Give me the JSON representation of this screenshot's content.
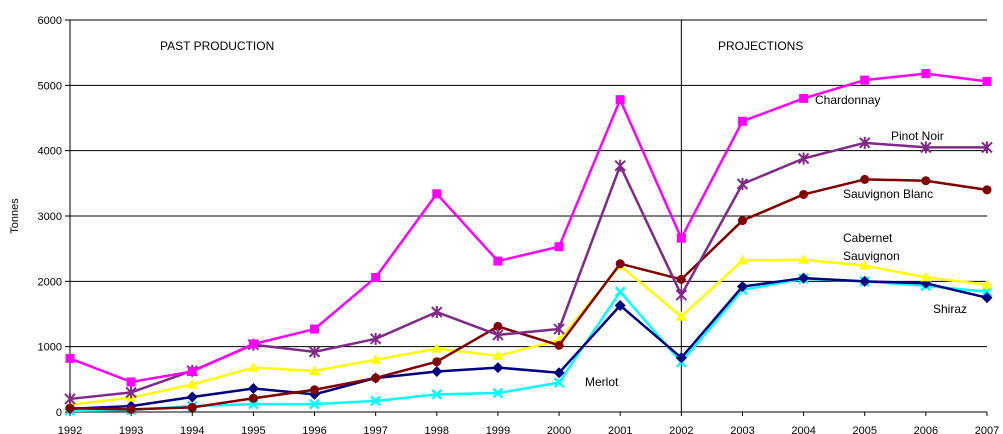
{
  "chart_data": {
    "type": "line",
    "title": "",
    "xlabel": "",
    "ylabel": "Tonnes",
    "ylim": [
      0,
      6000
    ],
    "yticks": [
      "0",
      "1000",
      "2000",
      "3000",
      "4000",
      "5000",
      "6000"
    ],
    "x": [
      "1992",
      "1993",
      "1994",
      "1995",
      "1996",
      "1997",
      "1998",
      "1999",
      "2000",
      "2001",
      "2002",
      "2003",
      "2004",
      "2005",
      "2006",
      "2007"
    ],
    "grid": "horizontal",
    "legend": "none",
    "regions": [
      {
        "label": "PAST PRODUCTION"
      },
      {
        "label": "PROJECTIONS"
      }
    ],
    "divider_x": "2002",
    "series": [
      {
        "name": "Chardonnay",
        "label": "Chardonnay",
        "color": "#ff00ff",
        "marker": "square",
        "values": [
          820,
          460,
          620,
          1040,
          1270,
          2060,
          3340,
          2310,
          2530,
          4780,
          2660,
          4450,
          4800,
          5080,
          5180,
          5060
        ]
      },
      {
        "name": "Pinot Noir",
        "label": "Pinot Noir",
        "color": "#7f2a86",
        "marker": "star",
        "values": [
          200,
          300,
          630,
          1030,
          920,
          1120,
          1530,
          1180,
          1270,
          3770,
          1790,
          3490,
          3880,
          4120,
          4050,
          4050
        ]
      },
      {
        "name": "Sauvignon Blanc",
        "label": "Sauvignon Blanc",
        "color": "#800000",
        "marker": "circle",
        "values": [
          60,
          40,
          70,
          210,
          340,
          520,
          770,
          1310,
          1020,
          2270,
          2030,
          2930,
          3330,
          3560,
          3540,
          3400
        ]
      },
      {
        "name": "Cabernet Sauvignon",
        "label": "Cabernet Sauvignon",
        "color": "#ffff00",
        "marker": "triangle",
        "values": [
          110,
          220,
          420,
          680,
          630,
          800,
          970,
          860,
          1100,
          2240,
          1460,
          2320,
          2330,
          2240,
          2060,
          1950
        ]
      },
      {
        "name": "Shiraz",
        "label": "Shiraz",
        "color": "#000080",
        "marker": "diamond",
        "values": [
          50,
          90,
          230,
          360,
          270,
          520,
          620,
          680,
          600,
          1630,
          830,
          1920,
          2050,
          2000,
          1970,
          1750
        ]
      },
      {
        "name": "Merlot",
        "label": "Merlot",
        "color": "#00ffff",
        "marker": "x",
        "values": [
          20,
          30,
          90,
          120,
          120,
          170,
          270,
          290,
          450,
          1840,
          760,
          1870,
          2040,
          2000,
          1930,
          1840
        ]
      }
    ]
  }
}
